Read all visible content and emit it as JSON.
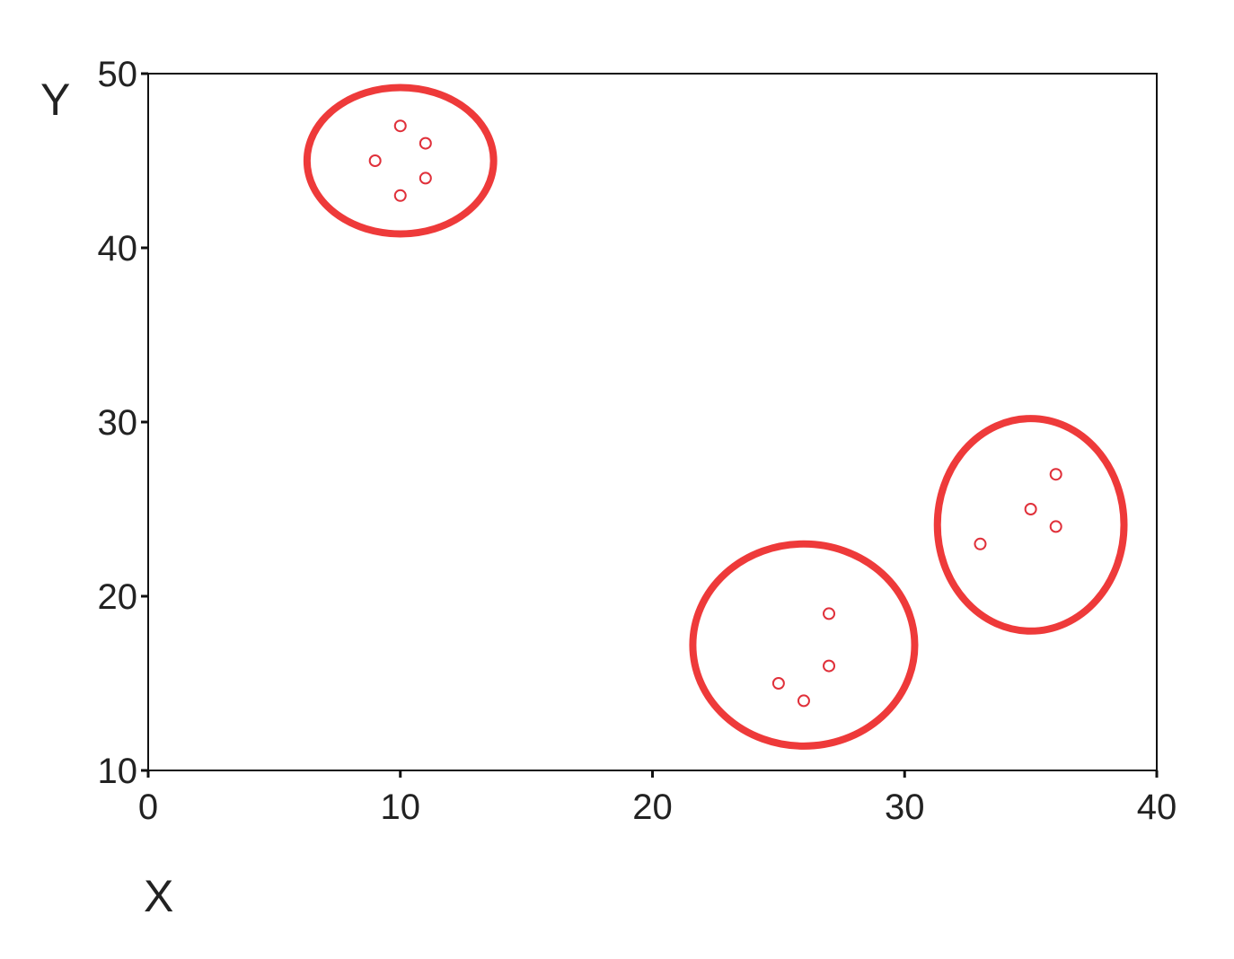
{
  "chart_data": {
    "type": "scatter",
    "title": "",
    "xlabel": "X",
    "ylabel": "Y",
    "xlim": [
      0,
      40
    ],
    "ylim": [
      10,
      50
    ],
    "x_ticks": [
      0,
      10,
      20,
      30,
      40
    ],
    "y_ticks": [
      10,
      20,
      30,
      40,
      50
    ],
    "grid": false,
    "point_color": "#e0303a",
    "cluster_color": "#ee3a3a",
    "points": [
      {
        "x": 10,
        "y": 47
      },
      {
        "x": 11,
        "y": 46
      },
      {
        "x": 9,
        "y": 45
      },
      {
        "x": 11,
        "y": 44
      },
      {
        "x": 10,
        "y": 43
      },
      {
        "x": 27,
        "y": 19
      },
      {
        "x": 27,
        "y": 16
      },
      {
        "x": 25,
        "y": 15
      },
      {
        "x": 26,
        "y": 14
      },
      {
        "x": 36,
        "y": 27
      },
      {
        "x": 35,
        "y": 25
      },
      {
        "x": 36,
        "y": 24
      },
      {
        "x": 33,
        "y": 23
      }
    ],
    "clusters": [
      {
        "cx": 10,
        "cy": 45,
        "rx": 3.7,
        "ry": 4.2
      },
      {
        "cx": 26,
        "cy": 17.2,
        "rx": 4.4,
        "ry": 5.8
      },
      {
        "cx": 35,
        "cy": 24.1,
        "rx": 3.7,
        "ry": 6.1
      }
    ]
  }
}
